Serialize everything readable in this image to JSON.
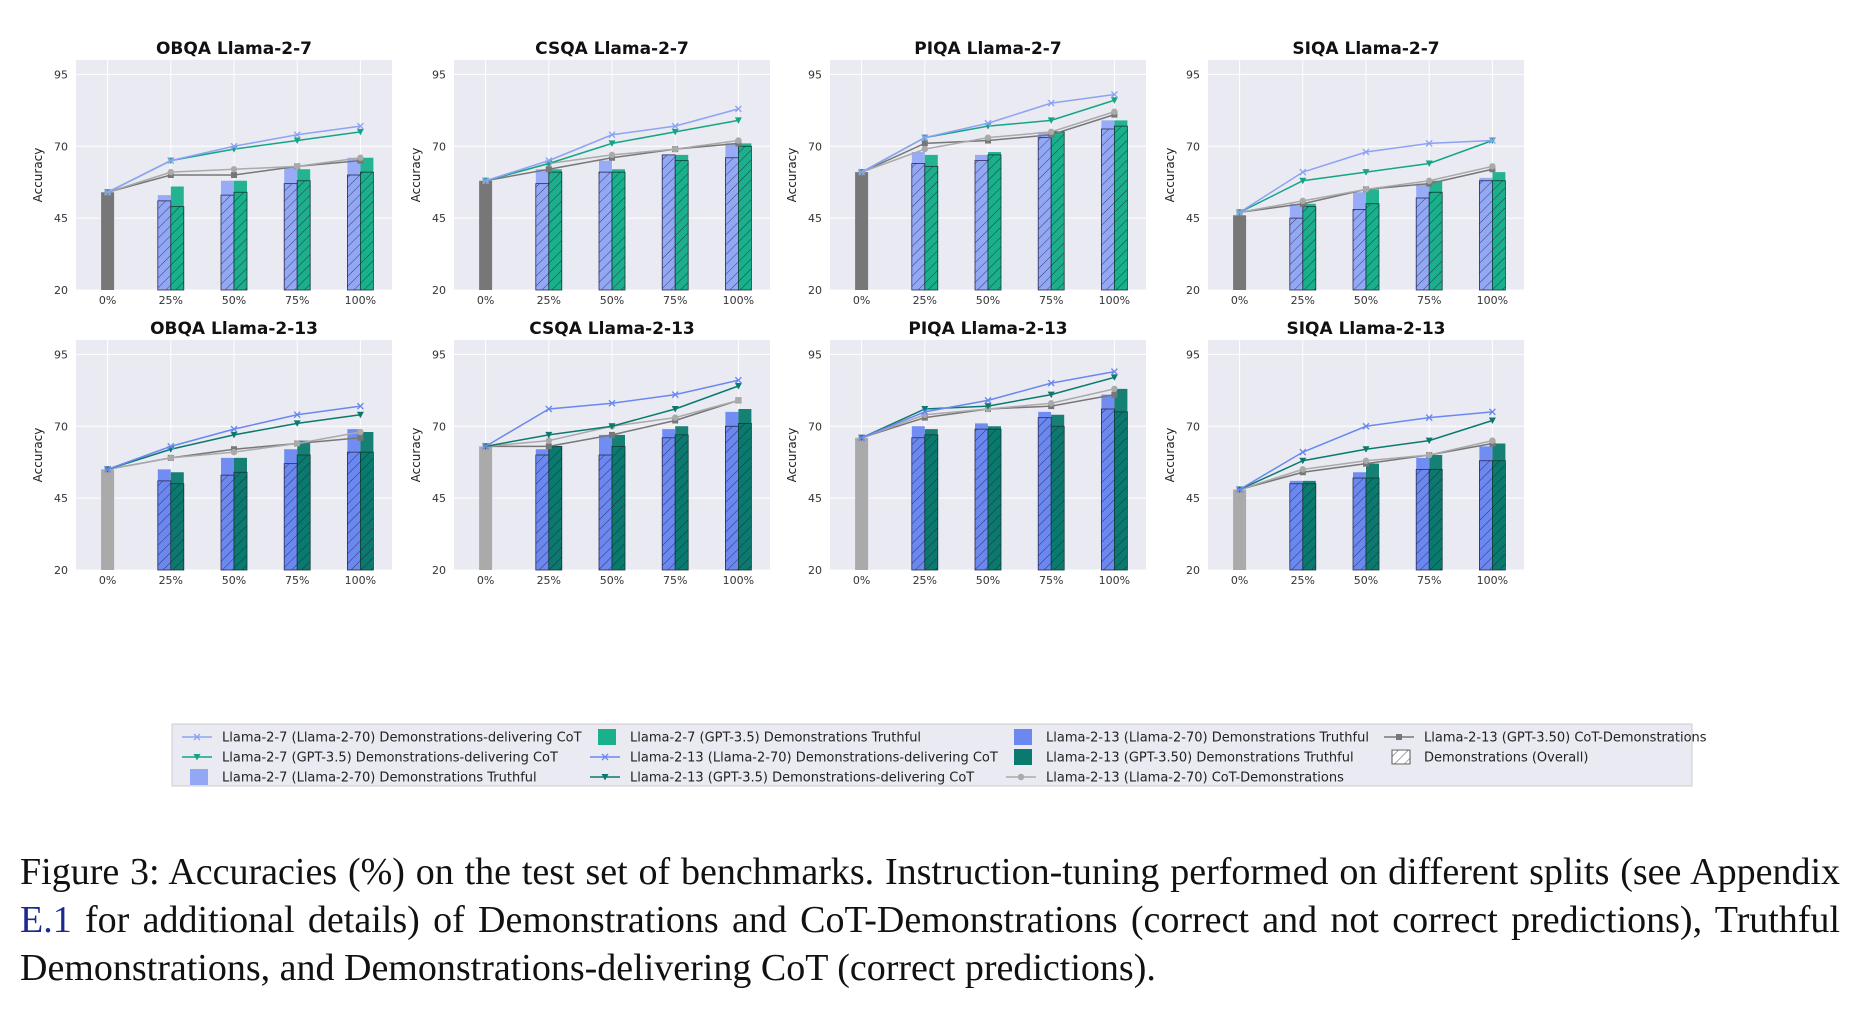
{
  "chart_data": [
    {
      "type": "bar",
      "title": "OBQA Llama-2-7",
      "model": "7",
      "ylabel": "Accuracy",
      "ylim": [
        20,
        100
      ],
      "yticks": [
        20,
        45,
        70,
        95
      ],
      "categories": [
        "0%",
        "25%",
        "50%",
        "75%",
        "100%"
      ],
      "baseline": 54,
      "bars": {
        "truthful_70": [
          53,
          58,
          63,
          66
        ],
        "truthful_gpt": [
          56,
          58,
          62,
          66
        ],
        "demonstrations_70": [
          51,
          53,
          57,
          60
        ],
        "demonstrations_gpt": [
          49,
          54,
          58,
          61
        ]
      },
      "lines": {
        "deliv_70": [
          54,
          65,
          70,
          74,
          77
        ],
        "deliv_gpt": [
          54,
          65,
          69,
          72,
          75
        ],
        "cot_70": [
          54,
          61,
          62,
          63,
          66
        ],
        "cot_gpt": [
          54,
          60,
          60,
          63,
          65
        ]
      }
    },
    {
      "type": "bar",
      "title": "CSQA Llama-2-7",
      "model": "7",
      "ylabel": "Accuracy",
      "ylim": [
        20,
        100
      ],
      "yticks": [
        20,
        45,
        70,
        95
      ],
      "categories": [
        "0%",
        "25%",
        "50%",
        "75%",
        "100%"
      ],
      "baseline": 58,
      "bars": {
        "truthful_70": [
          62,
          65,
          67,
          71
        ],
        "truthful_gpt": [
          62,
          62,
          67,
          71
        ],
        "demonstrations_70": [
          57,
          61,
          67,
          66
        ],
        "demonstrations_gpt": [
          61,
          61,
          65,
          70
        ]
      },
      "lines": {
        "deliv_70": [
          58,
          65,
          74,
          77,
          83
        ],
        "deliv_gpt": [
          58,
          64,
          71,
          75,
          79
        ],
        "cot_70": [
          58,
          64,
          67,
          69,
          72
        ],
        "cot_gpt": [
          58,
          62,
          66,
          69,
          71
        ]
      }
    },
    {
      "type": "bar",
      "title": "PIQA Llama-2-7",
      "model": "7",
      "ylabel": "Accuracy",
      "ylim": [
        20,
        100
      ],
      "yticks": [
        20,
        45,
        70,
        95
      ],
      "categories": [
        "0%",
        "25%",
        "50%",
        "75%",
        "100%"
      ],
      "baseline": 61,
      "bars": {
        "truthful_70": [
          68,
          67,
          75,
          79
        ],
        "truthful_gpt": [
          67,
          68,
          75,
          79
        ],
        "demonstrations_70": [
          64,
          65,
          73,
          76
        ],
        "demonstrations_gpt": [
          63,
          67,
          75,
          77
        ]
      },
      "lines": {
        "deliv_70": [
          61,
          73,
          78,
          85,
          88
        ],
        "deliv_gpt": [
          61,
          73,
          77,
          79,
          86
        ],
        "cot_70": [
          61,
          69,
          73,
          75,
          82
        ],
        "cot_gpt": [
          61,
          71,
          72,
          74,
          81
        ]
      }
    },
    {
      "type": "bar",
      "title": "SIQA Llama-2-7",
      "model": "7",
      "ylabel": "Accuracy",
      "ylim": [
        20,
        100
      ],
      "yticks": [
        20,
        45,
        70,
        95
      ],
      "categories": [
        "0%",
        "25%",
        "50%",
        "75%",
        "100%"
      ],
      "baseline": 46,
      "bars": {
        "truthful_70": [
          50,
          54,
          57,
          59
        ],
        "truthful_gpt": [
          50,
          55,
          58,
          61
        ],
        "demonstrations_70": [
          45,
          48,
          52,
          58
        ],
        "demonstrations_gpt": [
          49,
          50,
          54,
          58
        ]
      },
      "lines": {
        "deliv_70": [
          47,
          61,
          68,
          71,
          72
        ],
        "deliv_gpt": [
          47,
          58,
          61,
          64,
          72
        ],
        "cot_70": [
          47,
          51,
          55,
          58,
          63
        ],
        "cot_gpt": [
          47,
          50,
          55,
          57,
          62
        ]
      }
    },
    {
      "type": "bar",
      "title": "OBQA Llama-2-13",
      "model": "13",
      "ylabel": "Accuracy",
      "ylim": [
        20,
        100
      ],
      "yticks": [
        20,
        45,
        70,
        95
      ],
      "categories": [
        "0%",
        "25%",
        "50%",
        "75%",
        "100%"
      ],
      "baseline": 55,
      "bars": {
        "truthful_70": [
          55,
          59,
          62,
          69
        ],
        "truthful_gpt": [
          54,
          59,
          65,
          68
        ],
        "demonstrations_70": [
          51,
          53,
          57,
          61
        ],
        "demonstrations_gpt": [
          50,
          54,
          60,
          61
        ]
      },
      "lines": {
        "deliv_70": [
          55,
          63,
          69,
          74,
          77
        ],
        "deliv_gpt": [
          55,
          62,
          67,
          71,
          74
        ],
        "cot_70": [
          55,
          59,
          61,
          64,
          68
        ],
        "cot_gpt": [
          55,
          59,
          62,
          64,
          66
        ]
      }
    },
    {
      "type": "bar",
      "title": "CSQA Llama-2-13",
      "model": "13",
      "ylabel": "Accuracy",
      "ylim": [
        20,
        100
      ],
      "yticks": [
        20,
        45,
        70,
        95
      ],
      "categories": [
        "0%",
        "25%",
        "50%",
        "75%",
        "100%"
      ],
      "baseline": 63,
      "bars": {
        "truthful_70": [
          62,
          67,
          69,
          75
        ],
        "truthful_gpt": [
          63,
          67,
          70,
          76
        ],
        "demonstrations_70": [
          60,
          60,
          66,
          70
        ],
        "demonstrations_gpt": [
          63,
          63,
          67,
          71
        ]
      },
      "lines": {
        "deliv_70": [
          63,
          76,
          78,
          81,
          86
        ],
        "deliv_gpt": [
          63,
          67,
          70,
          76,
          84
        ],
        "cot_70": [
          63,
          65,
          70,
          73,
          79
        ],
        "cot_gpt": [
          63,
          63,
          67,
          72,
          79
        ]
      }
    },
    {
      "type": "bar",
      "title": "PIQA Llama-2-13",
      "model": "13",
      "ylabel": "Accuracy",
      "ylim": [
        20,
        100
      ],
      "yticks": [
        20,
        45,
        70,
        95
      ],
      "categories": [
        "0%",
        "25%",
        "50%",
        "75%",
        "100%"
      ],
      "baseline": 66,
      "bars": {
        "truthful_70": [
          70,
          71,
          75,
          81
        ],
        "truthful_gpt": [
          69,
          70,
          74,
          83
        ],
        "demonstrations_70": [
          66,
          69,
          73,
          76
        ],
        "demonstrations_gpt": [
          67,
          69,
          70,
          75
        ]
      },
      "lines": {
        "deliv_70": [
          66,
          75,
          79,
          85,
          89
        ],
        "deliv_gpt": [
          66,
          76,
          77,
          81,
          87
        ],
        "cot_70": [
          66,
          74,
          76,
          78,
          83
        ],
        "cot_gpt": [
          66,
          73,
          76,
          77,
          81
        ]
      }
    },
    {
      "type": "bar",
      "title": "SIQA Llama-2-13",
      "model": "13",
      "ylabel": "Accuracy",
      "ylim": [
        20,
        100
      ],
      "yticks": [
        20,
        45,
        70,
        95
      ],
      "categories": [
        "0%",
        "25%",
        "50%",
        "75%",
        "100%"
      ],
      "baseline": 48,
      "bars": {
        "truthful_70": [
          51,
          54,
          59,
          63
        ],
        "truthful_gpt": [
          51,
          57,
          60,
          64
        ],
        "demonstrations_70": [
          50,
          52,
          55,
          58
        ],
        "demonstrations_gpt": [
          50,
          52,
          55,
          58
        ]
      },
      "lines": {
        "deliv_70": [
          48,
          61,
          70,
          73,
          75
        ],
        "deliv_gpt": [
          48,
          58,
          62,
          65,
          72
        ],
        "cot_70": [
          48,
          55,
          58,
          60,
          65
        ],
        "cot_gpt": [
          48,
          54,
          57,
          60,
          64
        ]
      }
    }
  ],
  "legend": [
    {
      "key": "deliv_70_7",
      "label": "Llama-2-7 (Llama-2-70) Demonstrations-delivering CoT"
    },
    {
      "key": "deliv_gpt_7",
      "label": "Llama-2-7 (GPT-3.5) Demonstrations-delivering CoT"
    },
    {
      "key": "truth_70_7",
      "label": "Llama-2-7 (Llama-2-70) Demonstrations Truthful"
    },
    {
      "key": "truth_gpt_7",
      "label": "Llama-2-7 (GPT-3.5) Demonstrations Truthful"
    },
    {
      "key": "deliv_70_13",
      "label": "Llama-2-13 (Llama-2-70) Demonstrations-delivering CoT"
    },
    {
      "key": "deliv_gpt_13",
      "label": "Llama-2-13 (GPT-3.5) Demonstrations-delivering CoT"
    },
    {
      "key": "truth_70_13",
      "label": "Llama-2-13 (Llama-2-70) Demonstrations Truthful"
    },
    {
      "key": "truth_gpt_13",
      "label": "Llama-2-13 (GPT-3.50) Demonstrations Truthful"
    },
    {
      "key": "cot_70_13",
      "label": "Llama-2-13 (Llama-2-70) CoT-Demonstrations"
    },
    {
      "key": "cot_gpt_13",
      "label": "Llama-2-13 (GPT-3.50) CoT-Demonstrations"
    },
    {
      "key": "demo_overall",
      "label": "Demonstrations (Overall)"
    }
  ],
  "colors": {
    "plot_bg": "#eaeaf2",
    "blue_light": "#93a8f5",
    "blue_dark": "#6a88f0",
    "green_light": "#19b08b",
    "green_dark": "#0b7a6e",
    "line_blue_7": "#8ea2f5",
    "line_blue_13": "#6a88f0",
    "line_green_7": "#14a585",
    "line_green_13": "#0b7a6e",
    "gray_dark": "#777777",
    "gray_light": "#aaaaaa"
  },
  "caption": {
    "prefix": "Figure 3:  Accuracies (%) on the test set of benchmarks.  Instruction-tuning performed on different splits (see Appendix ",
    "ref": "E.1",
    "suffix": " for additional details) of Demonstrations and CoT-Demonstrations (correct and not correct predictions), Truthful Demonstrations, and Demonstrations-delivering CoT (correct predictions)."
  }
}
